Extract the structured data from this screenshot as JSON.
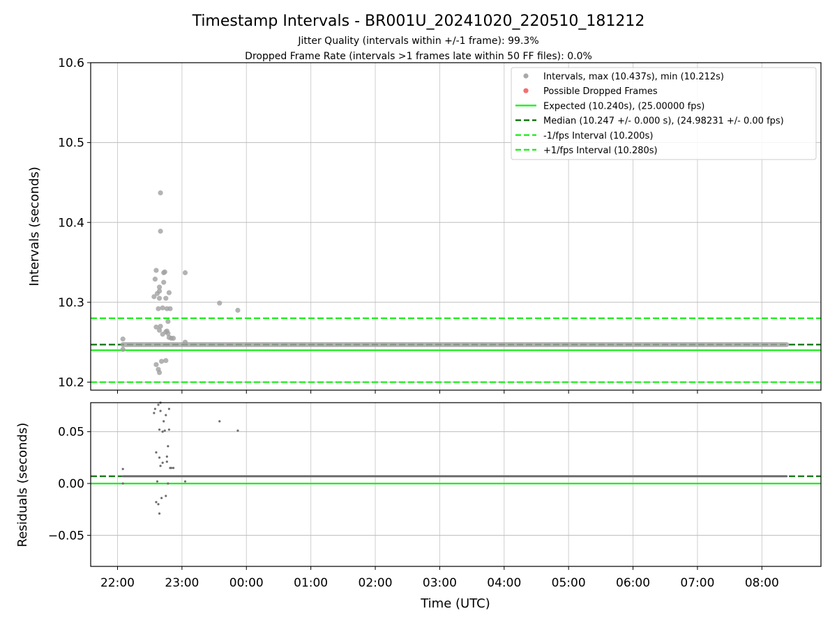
{
  "chart_data": {
    "type": "scatter",
    "title": "Timestamp Intervals - BR001U_20241020_220510_181212",
    "subtitle_lines": [
      "Jitter Quality (intervals within +/-1 frame): 99.3%",
      "Dropped Frame Rate (intervals >1 frames late within 50 FF files): 0.0%"
    ],
    "xlabel": "Time (UTC)",
    "x_tick_labels": [
      "22:00",
      "23:00",
      "00:00",
      "01:00",
      "02:00",
      "03:00",
      "04:00",
      "05:00",
      "06:00",
      "07:00",
      "08:00"
    ],
    "xlim": [
      "21:35",
      "08:55"
    ],
    "grid": true,
    "panels": [
      {
        "name": "intervals",
        "ylabel": "Intervals (seconds)",
        "ylim": [
          10.19,
          10.6
        ],
        "y_ticks": [
          10.2,
          10.3,
          10.4,
          10.5,
          10.6
        ],
        "y_tick_labels": [
          "10.2",
          "10.3",
          "10.4",
          "10.5",
          "10.6"
        ],
        "legend_position": "top-right",
        "legend": [
          {
            "label": "Intervals, max (10.437s), min (10.212s)",
            "kind": "marker",
            "color": "#a0a0a0"
          },
          {
            "label": "Possible Dropped Frames",
            "kind": "marker",
            "color": "#f06060"
          },
          {
            "label": "Expected (10.240s), (25.00000 fps)",
            "kind": "line",
            "color": "#22ee22",
            "dash": false
          },
          {
            "label": "Median (10.247 +/- 0.000 s), (24.98231 +/- 0.00 fps)",
            "kind": "line",
            "color": "#0b6e0b",
            "dash": true
          },
          {
            "label": "-1/fps Interval (10.200s)",
            "kind": "line",
            "color": "#22ee22",
            "dash": true
          },
          {
            "label": "+1/fps Interval (10.280s)",
            "kind": "line",
            "color": "#22ee22",
            "dash": true
          }
        ],
        "reference_lines": {
          "expected": 10.24,
          "median": 10.247,
          "minus_one_frame": 10.2,
          "plus_one_frame": 10.28
        },
        "baseline": {
          "value": 10.247,
          "x_start": "22:05",
          "x_end": "08:23"
        },
        "outliers": [
          {
            "x": "22:05",
            "y": 10.254
          },
          {
            "x": "22:05",
            "y": 10.241
          },
          {
            "x": "22:34",
            "y": 10.307
          },
          {
            "x": "22:35",
            "y": 10.329
          },
          {
            "x": "22:36",
            "y": 10.34
          },
          {
            "x": "22:36",
            "y": 10.269
          },
          {
            "x": "22:36",
            "y": 10.222
          },
          {
            "x": "22:37",
            "y": 10.311
          },
          {
            "x": "22:38",
            "y": 10.216
          },
          {
            "x": "22:38",
            "y": 10.292
          },
          {
            "x": "22:39",
            "y": 10.319
          },
          {
            "x": "22:39",
            "y": 10.314
          },
          {
            "x": "22:39",
            "y": 10.305
          },
          {
            "x": "22:39",
            "y": 10.265
          },
          {
            "x": "22:39",
            "y": 10.212
          },
          {
            "x": "22:40",
            "y": 10.437
          },
          {
            "x": "22:40",
            "y": 10.389
          },
          {
            "x": "22:40",
            "y": 10.27
          },
          {
            "x": "22:41",
            "y": 10.226
          },
          {
            "x": "22:42",
            "y": 10.293
          },
          {
            "x": "22:42",
            "y": 10.26
          },
          {
            "x": "22:43",
            "y": 10.337
          },
          {
            "x": "22:43",
            "y": 10.325
          },
          {
            "x": "22:44",
            "y": 10.338
          },
          {
            "x": "22:45",
            "y": 10.305
          },
          {
            "x": "22:45",
            "y": 10.263
          },
          {
            "x": "22:45",
            "y": 10.227
          },
          {
            "x": "22:46",
            "y": 10.292
          },
          {
            "x": "22:46",
            "y": 10.264
          },
          {
            "x": "22:47",
            "y": 10.276
          },
          {
            "x": "22:47",
            "y": 10.261
          },
          {
            "x": "22:48",
            "y": 10.312
          },
          {
            "x": "22:48",
            "y": 10.256
          },
          {
            "x": "22:49",
            "y": 10.292
          },
          {
            "x": "22:50",
            "y": 10.255
          },
          {
            "x": "22:52",
            "y": 10.255
          },
          {
            "x": "23:03",
            "y": 10.337
          },
          {
            "x": "23:03",
            "y": 10.25
          },
          {
            "x": "23:35",
            "y": 10.299
          },
          {
            "x": "23:52",
            "y": 10.29
          }
        ]
      },
      {
        "name": "residuals",
        "ylabel": "Residuals (seconds)",
        "ylim": [
          -0.08,
          0.078
        ],
        "y_ticks": [
          -0.05,
          0.0,
          0.05
        ],
        "y_tick_labels": [
          "−0.05",
          "0.00",
          "0.05"
        ],
        "reference_lines": {
          "zero": 0.0,
          "median_offset": 0.007
        },
        "baseline": {
          "value": 0.007,
          "x_start": "22:05",
          "x_end": "08:23"
        },
        "outliers": [
          {
            "x": "22:05",
            "y": 0.014
          },
          {
            "x": "22:05",
            "y": 0.0
          },
          {
            "x": "22:34",
            "y": 0.068
          },
          {
            "x": "22:35",
            "y": 0.072
          },
          {
            "x": "22:36",
            "y": -0.018
          },
          {
            "x": "22:36",
            "y": 0.03
          },
          {
            "x": "22:37",
            "y": 0.002
          },
          {
            "x": "22:38",
            "y": -0.02
          },
          {
            "x": "22:38",
            "y": 0.076
          },
          {
            "x": "22:39",
            "y": 0.052
          },
          {
            "x": "22:39",
            "y": 0.025
          },
          {
            "x": "22:39",
            "y": -0.029
          },
          {
            "x": "22:40",
            "y": 0.078
          },
          {
            "x": "22:40",
            "y": 0.07
          },
          {
            "x": "22:40",
            "y": 0.017
          },
          {
            "x": "22:41",
            "y": -0.014
          },
          {
            "x": "22:42",
            "y": 0.05
          },
          {
            "x": "22:42",
            "y": 0.02
          },
          {
            "x": "22:43",
            "y": 0.06
          },
          {
            "x": "22:44",
            "y": 0.051
          },
          {
            "x": "22:45",
            "y": -0.012
          },
          {
            "x": "22:45",
            "y": 0.066
          },
          {
            "x": "22:46",
            "y": 0.026
          },
          {
            "x": "22:46",
            "y": 0.021
          },
          {
            "x": "22:47",
            "y": 0.036
          },
          {
            "x": "22:47",
            "y": 0.0
          },
          {
            "x": "22:48",
            "y": 0.052
          },
          {
            "x": "22:48",
            "y": 0.072
          },
          {
            "x": "22:49",
            "y": 0.015
          },
          {
            "x": "22:50",
            "y": 0.015
          },
          {
            "x": "22:52",
            "y": 0.015
          },
          {
            "x": "23:03",
            "y": 0.002
          },
          {
            "x": "23:35",
            "y": 0.06
          },
          {
            "x": "23:52",
            "y": 0.051
          }
        ]
      }
    ]
  }
}
